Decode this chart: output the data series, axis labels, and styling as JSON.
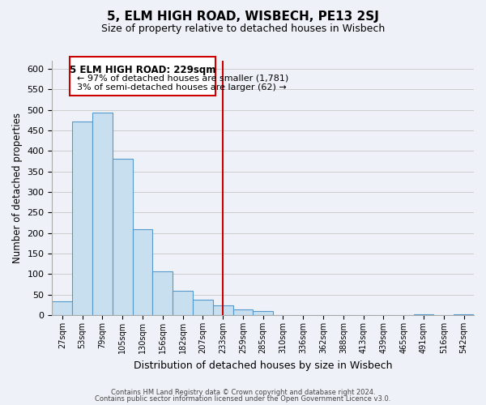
{
  "title": "5, ELM HIGH ROAD, WISBECH, PE13 2SJ",
  "subtitle": "Size of property relative to detached houses in Wisbech",
  "xlabel": "Distribution of detached houses by size in Wisbech",
  "ylabel": "Number of detached properties",
  "bar_color": "#c8dff0",
  "bar_edge_color": "#5599cc",
  "bin_labels": [
    "27sqm",
    "53sqm",
    "79sqm",
    "105sqm",
    "130sqm",
    "156sqm",
    "182sqm",
    "207sqm",
    "233sqm",
    "259sqm",
    "285sqm",
    "310sqm",
    "336sqm",
    "362sqm",
    "388sqm",
    "413sqm",
    "439sqm",
    "465sqm",
    "491sqm",
    "516sqm",
    "542sqm"
  ],
  "bar_heights": [
    33,
    472,
    494,
    381,
    209,
    106,
    60,
    38,
    23,
    14,
    11,
    0,
    0,
    0,
    0,
    0,
    0,
    0,
    2,
    0,
    2
  ],
  "vline_x": 8.0,
  "vline_color": "#cc0000",
  "ylim": [
    0,
    620
  ],
  "yticks": [
    0,
    50,
    100,
    150,
    200,
    250,
    300,
    350,
    400,
    450,
    500,
    550,
    600
  ],
  "annotation_title": "5 ELM HIGH ROAD: 229sqm",
  "annotation_line1": "← 97% of detached houses are smaller (1,781)",
  "annotation_line2": "3% of semi-detached houses are larger (62) →",
  "footnote1": "Contains HM Land Registry data © Crown copyright and database right 2024.",
  "footnote2": "Contains public sector information licensed under the Open Government Licence v3.0.",
  "background_color": "#eef2f8",
  "grid_color": "#cccccc"
}
